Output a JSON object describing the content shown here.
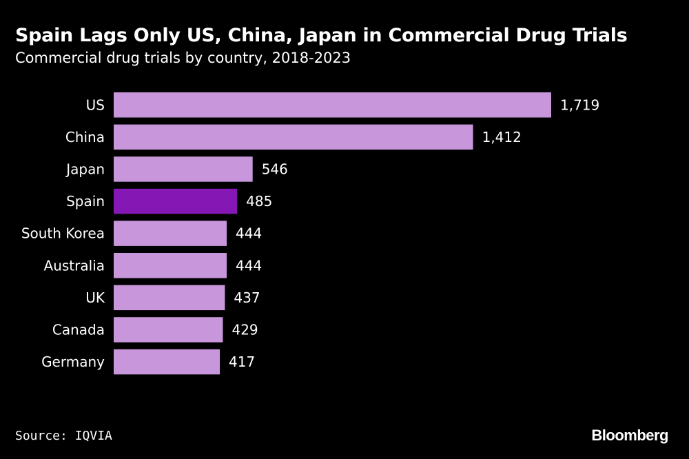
{
  "chart_data": {
    "type": "bar",
    "orientation": "horizontal",
    "title": "Spain Lags Only US, China, Japan in Commercial Drug Trials",
    "subtitle": "Commercial drug trials by country, 2018-2023",
    "categories": [
      "US",
      "China",
      "Japan",
      "Spain",
      "South Korea",
      "Australia",
      "UK",
      "Canada",
      "Germany"
    ],
    "values": [
      1719,
      1412,
      546,
      485,
      444,
      444,
      437,
      429,
      417
    ],
    "value_labels": [
      "1,719",
      "1,412",
      "546",
      "485",
      "444",
      "444",
      "437",
      "429",
      "417"
    ],
    "highlight": "Spain",
    "colors": {
      "default": "#c897db",
      "highlight": "#8518b5",
      "background": "#000000"
    },
    "grid": false,
    "source": "Source: IQVIA",
    "logo": "Bloomberg"
  }
}
